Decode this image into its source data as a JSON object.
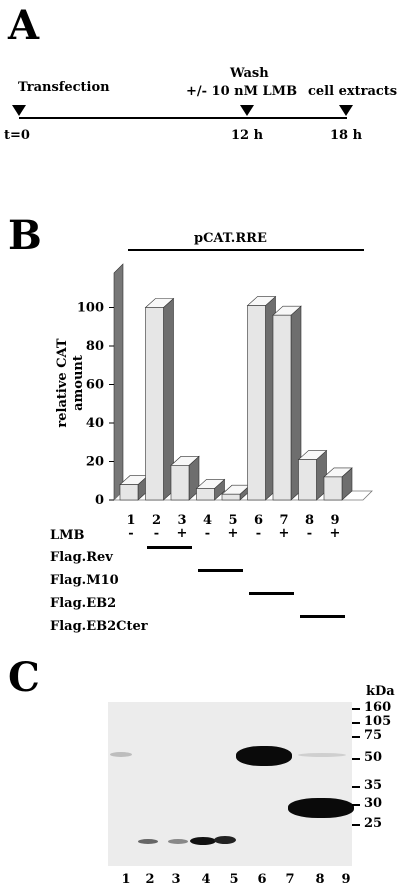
{
  "panels": {
    "a": "A",
    "b": "B",
    "c": "C"
  },
  "timeline": {
    "start_label": "Transfection",
    "wash_label": "Wash",
    "lmb_label": "+/- 10 nM LMB",
    "extract_label": "cell extracts",
    "t0": "t=0",
    "t12": "12 h",
    "t18": "18 h"
  },
  "chart_data": {
    "type": "bar",
    "title": "pCAT.RRE",
    "ylabel": "relative CAT amount",
    "xlabel": "",
    "ylim": [
      0,
      120
    ],
    "yticks": [
      0,
      20,
      40,
      60,
      80,
      100
    ],
    "categories": [
      "1",
      "2",
      "3",
      "4",
      "5",
      "6",
      "7",
      "8",
      "9"
    ],
    "values": [
      8,
      100,
      18,
      6,
      3,
      101,
      96,
      21,
      12
    ],
    "bar_color": "#e6e6e6",
    "side_color": "#6e6e6e",
    "wall_color": "#777777"
  },
  "conditions": {
    "lmb_label": "LMB",
    "lmb_signs": [
      "-",
      "-",
      "+",
      "-",
      "+",
      "-",
      "+",
      "-",
      "+"
    ],
    "rows": [
      {
        "label": "Flag.Rev",
        "from": 2,
        "to": 3
      },
      {
        "label": "Flag.M10",
        "from": 4,
        "to": 5
      },
      {
        "label": "Flag.EB2",
        "from": 6,
        "to": 7
      },
      {
        "label": "Flag.EB2Cter",
        "from": 8,
        "to": 9
      }
    ]
  },
  "blot": {
    "unit": "kDa",
    "markers": [
      "160",
      "105",
      "75",
      "50",
      "35",
      "30",
      "25"
    ],
    "lanes": [
      "1",
      "2",
      "3",
      "4",
      "5",
      "6",
      "7",
      "8",
      "9"
    ]
  }
}
